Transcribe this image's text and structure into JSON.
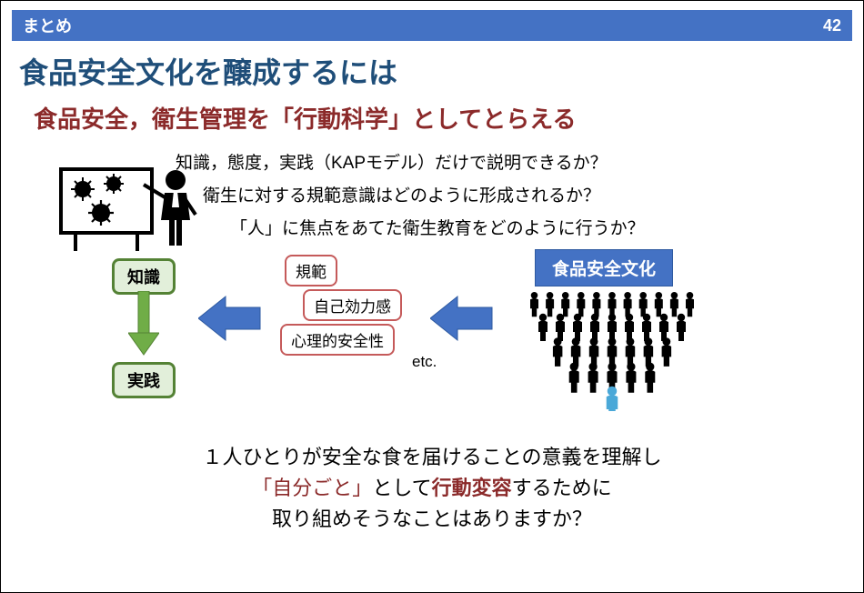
{
  "header": {
    "label": "まとめ",
    "page": "42",
    "bg": "#4472c4",
    "fg": "#ffffff"
  },
  "title": {
    "text": "食品安全文化を醸成するには",
    "color": "#1f4e79"
  },
  "subtitle": {
    "text": "食品安全，衛生管理を「行動科学」としてとらえる",
    "color": "#8b2a2a"
  },
  "questions": [
    "知識，態度，実践（KAPモデル）だけで説明できるか？",
    "衛生に対する規範意識はどのように形成されるか？",
    "「人」に焦点をあてた衛生教育をどのように行うか？"
  ],
  "diagram": {
    "knowledge": {
      "label": "知識",
      "bg": "#e2efda",
      "border": "#548235"
    },
    "practice": {
      "label": "実践",
      "bg": "#e2efda",
      "border": "#548235"
    },
    "norms": {
      "label": "規範",
      "border": "#c55a5a"
    },
    "efficacy": {
      "label": "自己効力感",
      "border": "#c55a5a"
    },
    "safety": {
      "label": "心理的安全性",
      "border": "#c55a5a"
    },
    "culture": {
      "label": "食品安全文化",
      "bg": "#4472c4",
      "fg": "#ffffff"
    },
    "etc": "etc.",
    "arrow_green": "#70ad47",
    "arrow_blue": "#4472c4",
    "board_border": "#333333",
    "virus_color": "#000000",
    "person_color": "#000000",
    "highlight_person": "#4aa8d8"
  },
  "bottom": {
    "line1": "１人ひとりが安全な食を届けることの意義を理解し",
    "line2a": "「自分ごと」",
    "line2b": "として",
    "line2c": "行動変容",
    "line2d": "するために",
    "line3": "取り組めそうなことはありますか？"
  }
}
